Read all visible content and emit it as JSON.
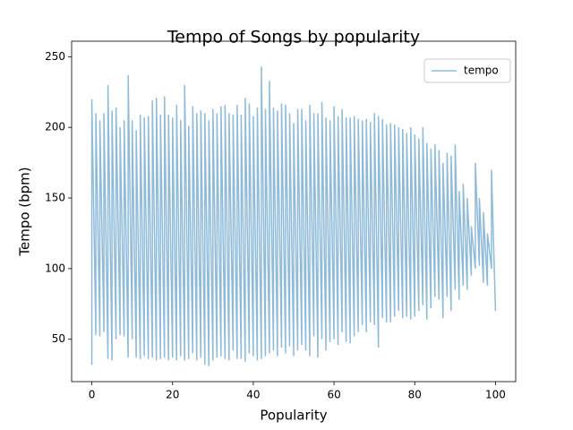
{
  "chart_data": {
    "type": "line",
    "title": "Tempo of Songs by popularity",
    "xlabel": "Popularity",
    "ylabel": "Tempo (bpm)",
    "xlim": [
      -5,
      105
    ],
    "ylim": [
      20,
      261
    ],
    "xticks": [
      0,
      20,
      40,
      60,
      80,
      100
    ],
    "yticks": [
      50,
      100,
      150,
      200,
      250
    ],
    "legend": "upper right",
    "grid": false,
    "x": [
      0,
      0,
      1,
      1,
      2,
      2,
      3,
      3,
      4,
      4,
      5,
      5,
      6,
      6,
      7,
      7,
      8,
      8,
      9,
      9,
      10,
      10,
      11,
      11,
      12,
      12,
      13,
      13,
      14,
      14,
      15,
      15,
      16,
      16,
      17,
      17,
      18,
      18,
      19,
      19,
      20,
      20,
      21,
      21,
      22,
      22,
      23,
      23,
      24,
      24,
      25,
      25,
      26,
      26,
      27,
      27,
      28,
      28,
      29,
      29,
      30,
      30,
      31,
      31,
      32,
      32,
      33,
      33,
      34,
      34,
      35,
      35,
      36,
      36,
      37,
      37,
      38,
      38,
      39,
      39,
      40,
      40,
      41,
      41,
      42,
      42,
      43,
      43,
      44,
      44,
      45,
      45,
      46,
      46,
      47,
      47,
      48,
      48,
      49,
      49,
      50,
      50,
      51,
      51,
      52,
      52,
      53,
      53,
      54,
      54,
      55,
      55,
      56,
      56,
      57,
      57,
      58,
      58,
      59,
      59,
      60,
      60,
      61,
      61,
      62,
      62,
      63,
      63,
      64,
      64,
      65,
      65,
      66,
      66,
      67,
      67,
      68,
      68,
      69,
      69,
      70,
      70,
      71,
      71,
      72,
      72,
      73,
      73,
      74,
      74,
      75,
      75,
      76,
      76,
      77,
      77,
      78,
      78,
      79,
      79,
      80,
      80,
      81,
      81,
      82,
      82,
      83,
      83,
      84,
      84,
      85,
      85,
      86,
      86,
      87,
      87,
      88,
      88,
      89,
      89,
      90,
      90,
      91,
      91,
      92,
      92,
      93,
      93,
      94,
      94,
      95,
      95,
      96,
      96,
      97,
      97,
      98,
      98,
      99,
      99,
      100
    ],
    "series": [
      {
        "name": "tempo",
        "color": "#8fbbd9",
        "values": [
          32,
          220,
          53,
          210,
          52,
          205,
          55,
          210,
          36,
          230,
          35,
          212,
          50,
          214,
          53,
          200,
          52,
          205,
          37,
          237,
          50,
          205,
          37,
          198,
          36,
          209,
          38,
          207,
          36,
          208,
          37,
          219,
          35,
          221,
          36,
          209,
          37,
          222,
          35,
          209,
          37,
          207,
          35,
          216,
          38,
          205,
          35,
          230,
          36,
          201,
          40,
          215,
          35,
          210,
          37,
          212,
          32,
          210,
          31,
          205,
          35,
          213,
          37,
          210,
          38,
          215,
          36,
          216,
          35,
          210,
          42,
          209,
          36,
          216,
          36,
          209,
          34,
          221,
          40,
          217,
          38,
          208,
          35,
          214,
          36,
          243,
          38,
          213,
          40,
          233,
          42,
          214,
          38,
          212,
          44,
          217,
          40,
          216,
          45,
          210,
          38,
          203,
          42,
          213,
          46,
          213,
          42,
          205,
          38,
          216,
          52,
          210,
          37,
          210,
          50,
          218,
          42,
          207,
          48,
          205,
          50,
          215,
          46,
          208,
          55,
          213,
          48,
          207,
          47,
          207,
          52,
          208,
          55,
          206,
          60,
          205,
          55,
          206,
          62,
          204,
          60,
          210,
          44,
          208,
          65,
          206,
          62,
          202,
          62,
          203,
          66,
          202,
          70,
          200,
          65,
          199,
          66,
          196,
          64,
          200,
          66,
          195,
          70,
          192,
          74,
          200,
          64,
          189,
          72,
          185,
          80,
          188,
          78,
          184,
          65,
          175,
          80,
          182,
          70,
          180,
          85,
          188,
          78,
          155,
          88,
          160,
          85,
          150,
          95,
          130,
          100,
          175,
          102,
          150,
          90,
          140,
          88,
          125,
          100,
          170,
          70
        ]
      }
    ]
  }
}
